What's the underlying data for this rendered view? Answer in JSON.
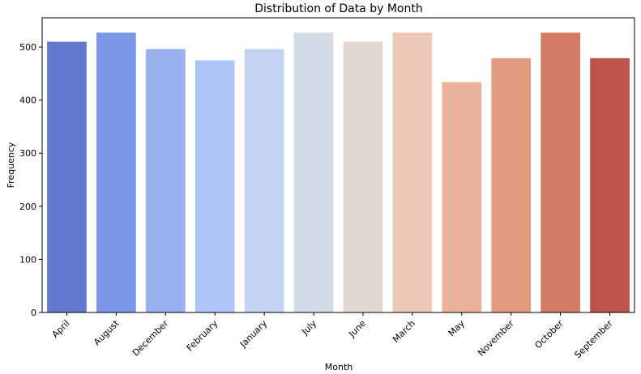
{
  "chart_data": {
    "type": "bar",
    "title": "Distribution of Data by Month",
    "xlabel": "Month",
    "ylabel": "Frequency",
    "categories": [
      "April",
      "August",
      "December",
      "February",
      "January",
      "July",
      "June",
      "March",
      "May",
      "November",
      "October",
      "September"
    ],
    "values": [
      510,
      527,
      496,
      475,
      496,
      527,
      510,
      527,
      434,
      479,
      527,
      479
    ],
    "colors": [
      "#6279cf",
      "#7c97e6",
      "#97b1ef",
      "#adc4f6",
      "#c4d3f1",
      "#d5dbe6",
      "#e4d8d2",
      "#ecc9b6",
      "#ebb39b",
      "#e39b80",
      "#d47b68",
      "#bc544c"
    ],
    "ylim": [
      0,
      555
    ],
    "yticks": [
      0,
      100,
      200,
      300,
      400,
      500
    ],
    "grid": false,
    "legend": "none"
  }
}
